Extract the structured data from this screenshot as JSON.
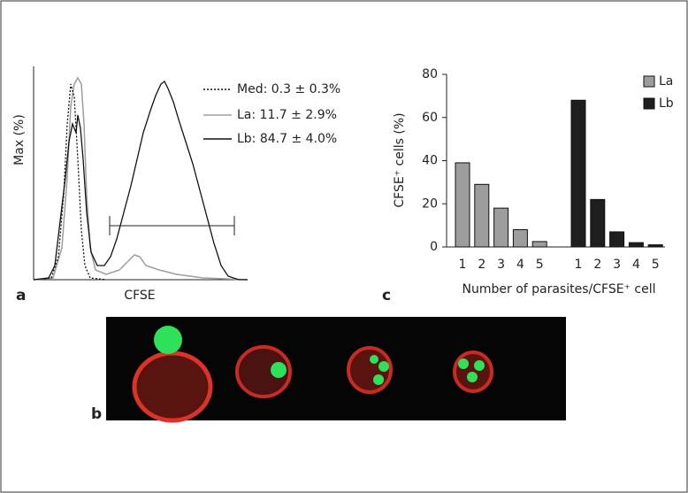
{
  "panel_labels": [
    "a",
    "b",
    "c"
  ],
  "histogram": {
    "x_label": "CFSE",
    "y_label": "Max (%)",
    "legend": [
      "Med: 0.3 ± 0.3%",
      "La: 11.7 ± 2.9%",
      "Lb: 84.7 ± 4.0%"
    ]
  },
  "chart_data": {
    "type": "bar",
    "y_label": "CFSE⁺ cells (%)",
    "x_label": "Number of parasites/CFSE⁺ cell",
    "categories": [
      "1",
      "2",
      "3",
      "4",
      "5"
    ],
    "series": [
      {
        "name": "La",
        "color": "#9d9d9d",
        "values": [
          39,
          29,
          18,
          8,
          2.5
        ]
      },
      {
        "name": "Lb",
        "color": "#1e1e1e",
        "values": [
          68,
          22,
          7,
          2,
          1
        ]
      }
    ],
    "ylim": [
      0,
      80
    ],
    "yticks": [
      0,
      20,
      40,
      60,
      80
    ]
  }
}
